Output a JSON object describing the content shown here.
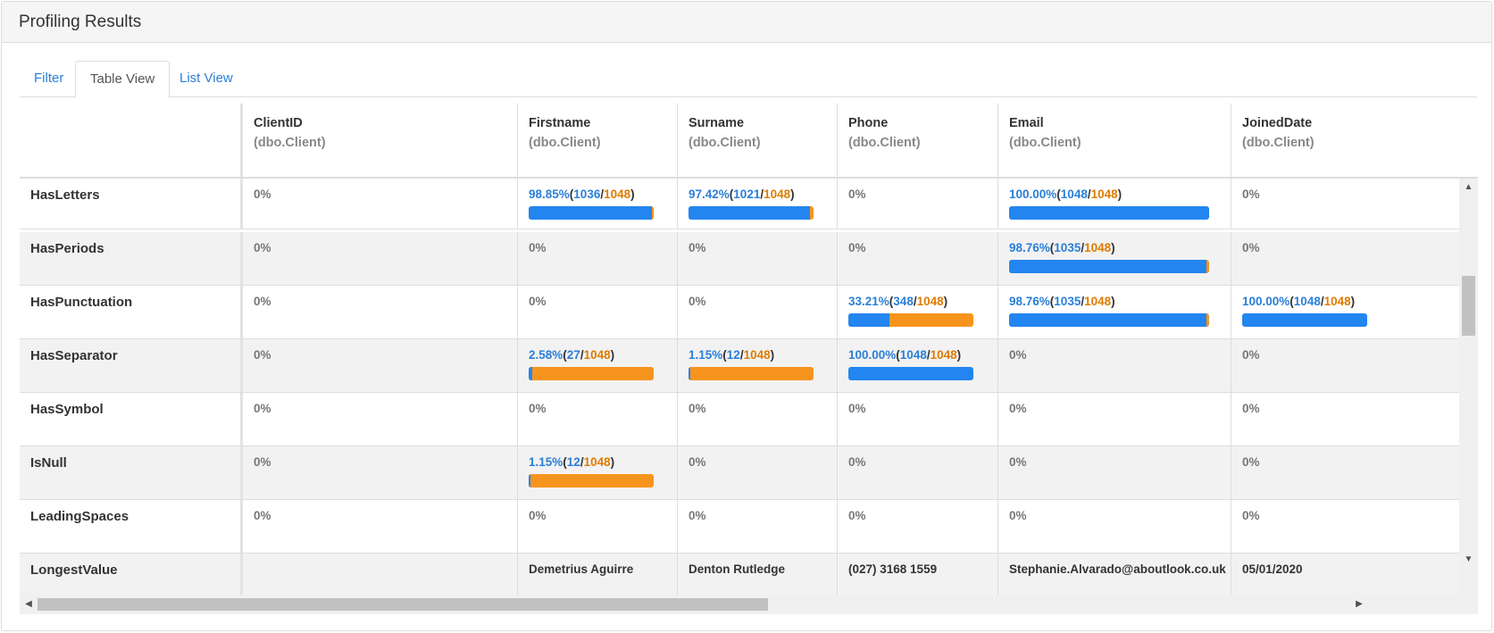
{
  "panel": {
    "title": "Profiling Results"
  },
  "tabs": [
    {
      "label": "Filter",
      "active": false
    },
    {
      "label": "Table View",
      "active": true
    },
    {
      "label": "List View",
      "active": false
    }
  ],
  "columns": [
    {
      "name": "ClientID",
      "source": "(dbo.Client)"
    },
    {
      "name": "Firstname",
      "source": "(dbo.Client)"
    },
    {
      "name": "Surname",
      "source": "(dbo.Client)"
    },
    {
      "name": "Phone",
      "source": "(dbo.Client)"
    },
    {
      "name": "Email",
      "source": "(dbo.Client)"
    },
    {
      "name": "JoinedDate",
      "source": "(dbo.Client)"
    }
  ],
  "rows": [
    {
      "label": "HasLetters",
      "cells": [
        {
          "text": "0%"
        },
        {
          "pct": "98.85%",
          "count": "1036",
          "total": "1048",
          "ratio": 0.9885
        },
        {
          "pct": "97.42%",
          "count": "1021",
          "total": "1048",
          "ratio": 0.9742
        },
        {
          "text": "0%"
        },
        {
          "pct": "100.00%",
          "count": "1048",
          "total": "1048",
          "ratio": 1.0
        },
        {
          "text": "0%"
        }
      ]
    },
    {
      "label": "HasPeriods",
      "cells": [
        {
          "text": "0%"
        },
        {
          "text": "0%"
        },
        {
          "text": "0%"
        },
        {
          "text": "0%"
        },
        {
          "pct": "98.76%",
          "count": "1035",
          "total": "1048",
          "ratio": 0.9876
        },
        {
          "text": "0%"
        }
      ]
    },
    {
      "label": "HasPunctuation",
      "cells": [
        {
          "text": "0%"
        },
        {
          "text": "0%"
        },
        {
          "text": "0%"
        },
        {
          "pct": "33.21%",
          "count": "348",
          "total": "1048",
          "ratio": 0.3321
        },
        {
          "pct": "98.76%",
          "count": "1035",
          "total": "1048",
          "ratio": 0.9876
        },
        {
          "pct": "100.00%",
          "count": "1048",
          "total": "1048",
          "ratio": 1.0
        }
      ]
    },
    {
      "label": "HasSeparator",
      "cells": [
        {
          "text": "0%"
        },
        {
          "pct": "2.58%",
          "count": "27",
          "total": "1048",
          "ratio": 0.0258
        },
        {
          "pct": "1.15%",
          "count": "12",
          "total": "1048",
          "ratio": 0.0115
        },
        {
          "pct": "100.00%",
          "count": "1048",
          "total": "1048",
          "ratio": 1.0
        },
        {
          "text": "0%"
        },
        {
          "text": "0%"
        }
      ]
    },
    {
      "label": "HasSymbol",
      "cells": [
        {
          "text": "0%"
        },
        {
          "text": "0%"
        },
        {
          "text": "0%"
        },
        {
          "text": "0%"
        },
        {
          "text": "0%"
        },
        {
          "text": "0%"
        }
      ]
    },
    {
      "label": "IsNull",
      "cells": [
        {
          "text": "0%"
        },
        {
          "pct": "1.15%",
          "count": "12",
          "total": "1048",
          "ratio": 0.0115
        },
        {
          "text": "0%"
        },
        {
          "text": "0%"
        },
        {
          "text": "0%"
        },
        {
          "text": "0%"
        }
      ]
    },
    {
      "label": "LeadingSpaces",
      "cells": [
        {
          "text": "0%"
        },
        {
          "text": "0%"
        },
        {
          "text": "0%"
        },
        {
          "text": "0%"
        },
        {
          "text": "0%"
        },
        {
          "text": "0%"
        }
      ]
    },
    {
      "label": "LongestValue",
      "cells": [
        {
          "text": ""
        },
        {
          "text": "Demetrius Aguirre"
        },
        {
          "text": "Denton Rutledge"
        },
        {
          "text": "(027) 3168 1559"
        },
        {
          "text": "Stephanie.Alvarado@aboutlook.co.uk"
        },
        {
          "text": "05/01/2020"
        }
      ]
    }
  ],
  "scrollbars": {
    "up": "▲",
    "down": "▼",
    "left": "◀",
    "right": "▶"
  },
  "colors": {
    "accent": "#2a7fd8",
    "bar_fill": "#2385f0",
    "bar_rest": "#f7941d",
    "total": "#e07b00"
  }
}
